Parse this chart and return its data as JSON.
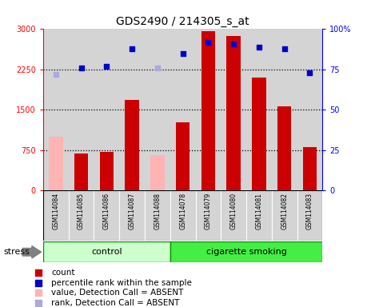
{
  "title": "GDS2490 / 214305_s_at",
  "samples": [
    "GSM114084",
    "GSM114085",
    "GSM114086",
    "GSM114087",
    "GSM114088",
    "GSM114078",
    "GSM114079",
    "GSM114080",
    "GSM114081",
    "GSM114082",
    "GSM114083"
  ],
  "counts": [
    null,
    680,
    710,
    1680,
    null,
    1260,
    2960,
    2880,
    2100,
    1560,
    800
  ],
  "absent_counts": [
    1000,
    null,
    null,
    null,
    660,
    null,
    null,
    null,
    null,
    null,
    null
  ],
  "percentile_ranks": [
    null,
    76,
    77,
    88,
    null,
    85,
    92,
    91,
    89,
    88,
    73
  ],
  "absent_ranks": [
    72,
    null,
    null,
    null,
    76,
    null,
    null,
    null,
    null,
    null,
    null
  ],
  "ylim_left": [
    0,
    3000
  ],
  "ylim_right": [
    0,
    100
  ],
  "yticks_left": [
    0,
    750,
    1500,
    2250,
    3000
  ],
  "yticks_right": [
    0,
    25,
    50,
    75,
    100
  ],
  "bar_color_present": "#cc0000",
  "bar_color_absent": "#ffb3b3",
  "dot_color_present": "#0000cc",
  "dot_color_absent": "#aaaadd",
  "control_color": "#ccffcc",
  "smoking_color": "#44ee44",
  "group_border": "#009900",
  "col_bg_color": "#d4d4d4",
  "title_fontsize": 10,
  "tick_fontsize": 7,
  "label_fontsize": 8,
  "legend_fontsize": 7.5
}
